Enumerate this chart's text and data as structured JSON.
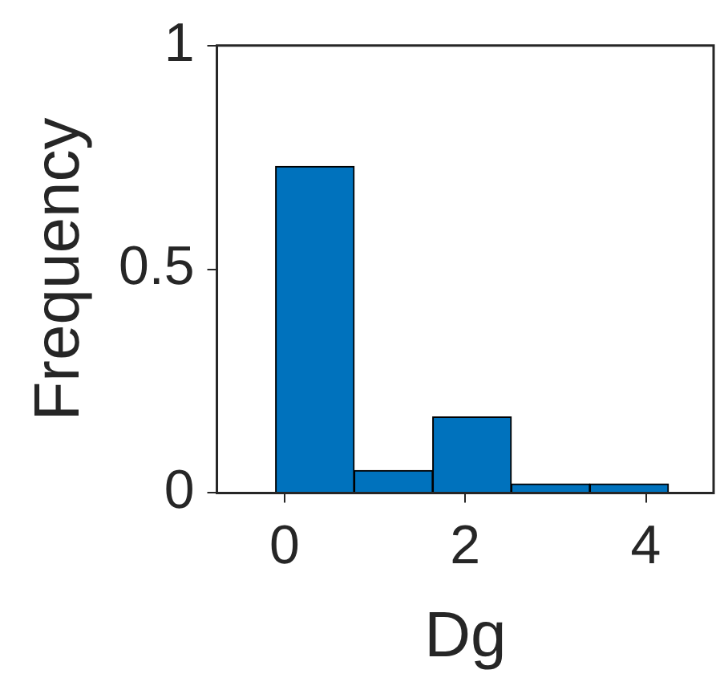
{
  "chart_data": {
    "type": "histogram",
    "xlabel": "Dg",
    "ylabel": "Frequency",
    "bins": [
      -0.1,
      0.77,
      1.64,
      2.51,
      3.38,
      4.25
    ],
    "values": [
      0.73,
      0.05,
      0.17,
      0.02,
      0.02
    ],
    "color": "#0072bd",
    "xlim": [
      -0.75,
      4.75
    ],
    "xticks": [
      0,
      2,
      4
    ],
    "ylim": [
      0,
      1
    ],
    "yticks": [
      0,
      0.5,
      1
    ],
    "grid": false,
    "legend": false
  }
}
